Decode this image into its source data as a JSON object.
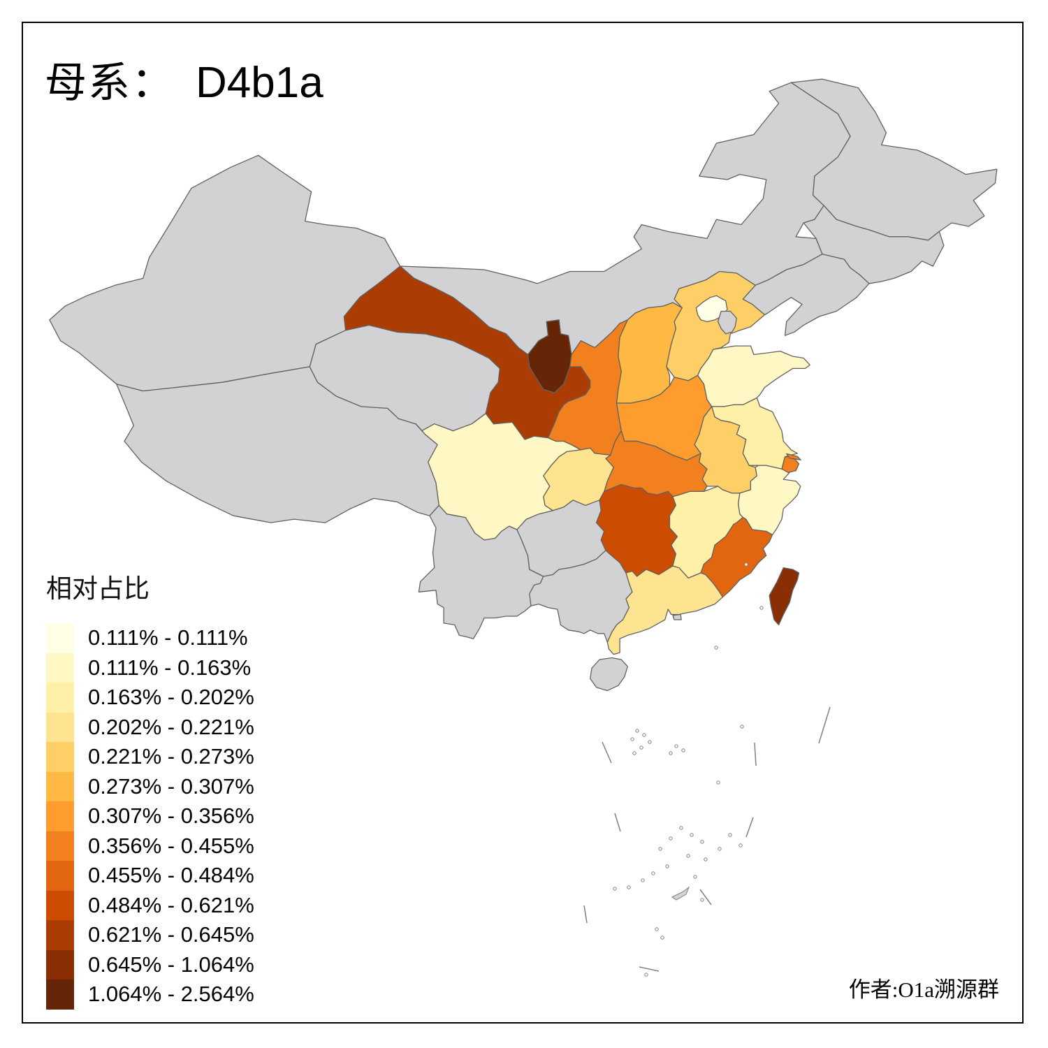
{
  "title": {
    "prefix": "母系：",
    "haplogroup": "D4b1a"
  },
  "legend": {
    "title": "相对占比",
    "bins": [
      {
        "label": "0.111% - 0.111%",
        "color": "#FFFFE5"
      },
      {
        "label": "0.111% - 0.163%",
        "color": "#FFF8C4"
      },
      {
        "label": "0.163% - 0.202%",
        "color": "#FEF0A7"
      },
      {
        "label": "0.202% - 0.221%",
        "color": "#FEE391"
      },
      {
        "label": "0.221% - 0.273%",
        "color": "#FECF66"
      },
      {
        "label": "0.273% - 0.307%",
        "color": "#FEB844"
      },
      {
        "label": "0.307% - 0.356%",
        "color": "#FE9C2D"
      },
      {
        "label": "0.356% - 0.455%",
        "color": "#F2801E"
      },
      {
        "label": "0.455% - 0.484%",
        "color": "#E2660F"
      },
      {
        "label": "0.484% - 0.621%",
        "color": "#CC4C02"
      },
      {
        "label": "0.621% - 0.645%",
        "color": "#AB3C03"
      },
      {
        "label": "0.645% - 1.064%",
        "color": "#892E05"
      },
      {
        "label": "1.064% - 2.564%",
        "color": "#662506"
      }
    ]
  },
  "attribution": "作者:O1a溯源群",
  "map": {
    "no_data_color": "#D2D2D4",
    "border_color": "#616161",
    "background_color": "#FFFFFF",
    "provinces": [
      {
        "id": "xinjiang",
        "bin": null
      },
      {
        "id": "tibet",
        "bin": null
      },
      {
        "id": "qinghai",
        "bin": null
      },
      {
        "id": "inner-mongolia",
        "bin": null
      },
      {
        "id": "heilongjiang",
        "bin": null
      },
      {
        "id": "jilin",
        "bin": null
      },
      {
        "id": "liaoning",
        "bin": null
      },
      {
        "id": "yunnan",
        "bin": null
      },
      {
        "id": "guizhou",
        "bin": null
      },
      {
        "id": "guangxi",
        "bin": null
      },
      {
        "id": "hainan",
        "bin": null
      },
      {
        "id": "sichuan",
        "bin": 1
      },
      {
        "id": "gansu",
        "bin": 10
      },
      {
        "id": "ningxia",
        "bin": 12
      },
      {
        "id": "shaanxi",
        "bin": 7
      },
      {
        "id": "shanxi",
        "bin": 5
      },
      {
        "id": "henan",
        "bin": 6
      },
      {
        "id": "hubei",
        "bin": 7
      },
      {
        "id": "chongqing",
        "bin": 3
      },
      {
        "id": "hunan",
        "bin": 9
      },
      {
        "id": "hebei",
        "bin": 4
      },
      {
        "id": "shandong",
        "bin": 1
      },
      {
        "id": "jiangsu",
        "bin": 2
      },
      {
        "id": "anhui",
        "bin": 4
      },
      {
        "id": "zhejiang",
        "bin": 1
      },
      {
        "id": "jiangxi",
        "bin": 2
      },
      {
        "id": "fujian",
        "bin": 8
      },
      {
        "id": "guangdong",
        "bin": 3
      },
      {
        "id": "taiwan",
        "bin": 11
      },
      {
        "id": "shanghai",
        "bin": 7
      },
      {
        "id": "chongming",
        "bin": 7
      },
      {
        "id": "beijing",
        "bin": 0
      },
      {
        "id": "tianjin",
        "bin": null
      },
      {
        "id": "hongkong",
        "bin": null
      }
    ]
  }
}
